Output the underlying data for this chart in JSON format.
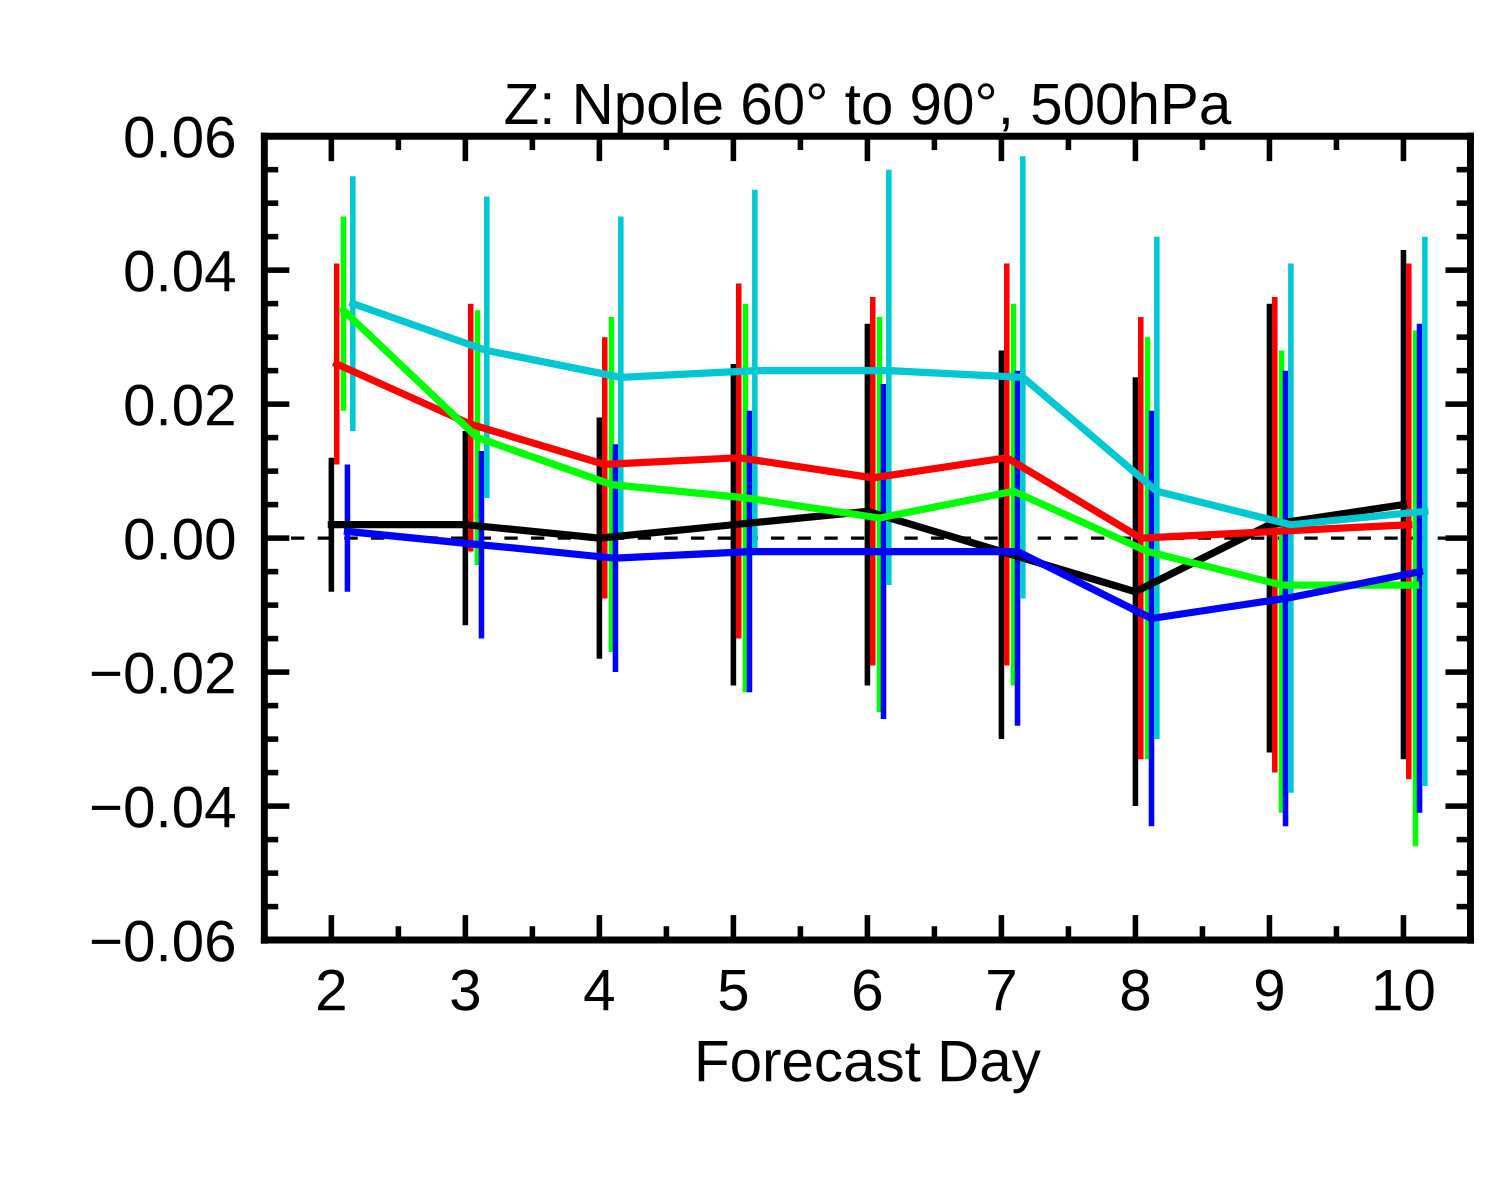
{
  "chart_data": {
    "type": "line",
    "title": "Z: Npole 60° to 90°, 500hPa",
    "xlabel": "Forecast Day",
    "xlim": [
      1.5,
      10.5
    ],
    "xticks": [
      2,
      3,
      4,
      5,
      6,
      7,
      8,
      9,
      10
    ],
    "ylim": [
      -0.06,
      0.06
    ],
    "yticks": [
      {
        "value": -0.06,
        "label": "−0.06"
      },
      {
        "value": -0.04,
        "label": "−0.04"
      },
      {
        "value": -0.02,
        "label": "−0.02"
      },
      {
        "value": 0,
        "label": "0.00"
      },
      {
        "value": 0.02,
        "label": "0.02"
      },
      {
        "value": 0.04,
        "label": "0.04"
      },
      {
        "value": 0.06,
        "label": "0.06"
      }
    ],
    "grid": false,
    "legend": false,
    "marker": "none",
    "line_style": "solid",
    "ref_lines": [
      {
        "axis": "y",
        "value": 0,
        "color": "#000000",
        "line_style": "dashed"
      }
    ],
    "series": [
      {
        "color": "#000000",
        "x": [
          2,
          3,
          4,
          5,
          6,
          7,
          8,
          9,
          10
        ],
        "values": [
          0.002,
          0.002,
          0.0,
          0.002,
          0.004,
          -0.002,
          -0.008,
          0.002,
          0.005
        ],
        "errors": [
          [
            -0.008,
            0.012
          ],
          [
            -0.013,
            0.016
          ],
          [
            -0.018,
            0.018
          ],
          [
            -0.022,
            0.026
          ],
          [
            -0.022,
            0.032
          ],
          [
            -0.03,
            0.028
          ],
          [
            -0.04,
            0.024
          ],
          [
            -0.032,
            0.035
          ],
          [
            -0.033,
            0.043
          ]
        ]
      },
      {
        "color": "#ff0000",
        "x": [
          2.04,
          3.04,
          4.04,
          5.04,
          6.04,
          7.04,
          8.04,
          9.04,
          10.04
        ],
        "values": [
          0.026,
          0.017,
          0.011,
          0.012,
          0.009,
          0.012,
          0.0,
          0.001,
          0.002
        ],
        "errors": [
          [
            0.011,
            0.041
          ],
          [
            -0.002,
            0.035
          ],
          [
            -0.009,
            0.03
          ],
          [
            -0.015,
            0.038
          ],
          [
            -0.019,
            0.036
          ],
          [
            -0.019,
            0.041
          ],
          [
            -0.033,
            0.033
          ],
          [
            -0.035,
            0.036
          ],
          [
            -0.036,
            0.041
          ]
        ]
      },
      {
        "color": "#00ff00",
        "x": [
          2.09,
          3.09,
          4.09,
          5.09,
          6.09,
          7.09,
          8.09,
          9.09,
          10.09
        ],
        "values": [
          0.034,
          0.015,
          0.008,
          0.006,
          0.003,
          0.007,
          -0.002,
          -0.007,
          -0.007
        ],
        "errors": [
          [
            0.019,
            0.048
          ],
          [
            -0.004,
            0.034
          ],
          [
            -0.017,
            0.033
          ],
          [
            -0.023,
            0.035
          ],
          [
            -0.026,
            0.033
          ],
          [
            -0.022,
            0.035
          ],
          [
            -0.033,
            0.03
          ],
          [
            -0.041,
            0.028
          ],
          [
            -0.046,
            0.031
          ]
        ]
      },
      {
        "color": "#0000ff",
        "x": [
          2.12,
          3.12,
          4.12,
          5.12,
          6.12,
          7.12,
          8.12,
          9.12,
          10.12
        ],
        "values": [
          0.001,
          -0.001,
          -0.003,
          -0.002,
          -0.002,
          -0.002,
          -0.012,
          -0.009,
          -0.005
        ],
        "errors": [
          [
            -0.008,
            0.011
          ],
          [
            -0.015,
            0.013
          ],
          [
            -0.02,
            0.014
          ],
          [
            -0.023,
            0.019
          ],
          [
            -0.027,
            0.023
          ],
          [
            -0.028,
            0.025
          ],
          [
            -0.043,
            0.019
          ],
          [
            -0.043,
            0.025
          ],
          [
            -0.041,
            0.032
          ]
        ]
      },
      {
        "color": "#00c8d2",
        "x": [
          2.16,
          3.16,
          4.16,
          5.16,
          6.16,
          7.16,
          8.16,
          9.16,
          10.16
        ],
        "values": [
          0.035,
          0.028,
          0.024,
          0.025,
          0.025,
          0.024,
          0.007,
          0.002,
          0.004
        ],
        "errors": [
          [
            0.016,
            0.054
          ],
          [
            0.006,
            0.051
          ],
          [
            0.0,
            0.048
          ],
          [
            -0.002,
            0.052
          ],
          [
            -0.007,
            0.055
          ],
          [
            -0.009,
            0.057
          ],
          [
            -0.03,
            0.045
          ],
          [
            -0.038,
            0.041
          ],
          [
            -0.037,
            0.045
          ]
        ]
      }
    ]
  }
}
